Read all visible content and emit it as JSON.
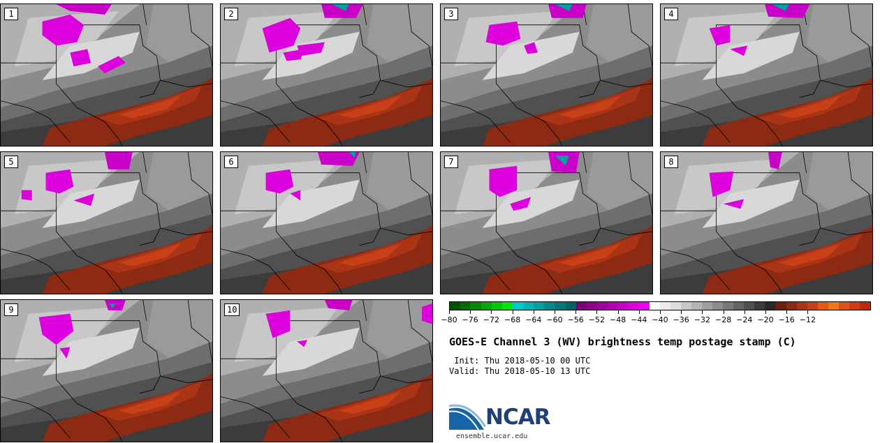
{
  "title": "GOES-E Channel 3 (WV) brightness temp postage stamp (C)",
  "init_label": "Init:",
  "init_time": "Thu 2018-05-10 00 UTC",
  "valid_label": "Valid:",
  "valid_time": "Thu 2018-05-10 13 UTC",
  "members": [
    "1",
    "2",
    "3",
    "4",
    "5",
    "6",
    "7",
    "8",
    "9",
    "10"
  ],
  "colorbar": {
    "ticks": [
      "−80",
      "−76",
      "−72",
      "−68",
      "−64",
      "−60",
      "−56",
      "−52",
      "−48",
      "−44",
      "−40",
      "−36",
      "−32",
      "−28",
      "−24",
      "−20",
      "−16",
      "−12"
    ],
    "colors": [
      "#005500",
      "#006e00",
      "#008800",
      "#00aa00",
      "#00c800",
      "#00e600",
      "#00c8c8",
      "#00b4b4",
      "#00a0a0",
      "#008c8c",
      "#007878",
      "#006464",
      "#7a0078",
      "#8c008c",
      "#a000a0",
      "#b400b4",
      "#c800c8",
      "#dc00dc",
      "#f000f0",
      "#ffffff",
      "#ececec",
      "#dcdcdc",
      "#c8c8c8",
      "#b4b4b4",
      "#a0a0a0",
      "#8c8c8c",
      "#787878",
      "#646464",
      "#505050",
      "#3c3c3c",
      "#282828",
      "#6e2010",
      "#8c2a14",
      "#aa3416",
      "#c84018",
      "#e65a14",
      "#f07818",
      "#e05018",
      "#d03c10",
      "#c02808"
    ]
  },
  "logo": {
    "text": "NCAR",
    "url": "ensemble.ucar.edu",
    "colors": {
      "blue": "#1565a8",
      "dark": "#1f3f78",
      "light": "#8fb4d8"
    }
  }
}
